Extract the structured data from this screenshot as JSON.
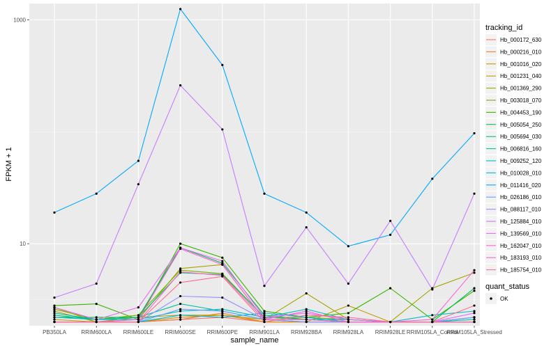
{
  "chart_data": {
    "type": "line",
    "xlabel": "sample_name",
    "ylabel": "FPKM + 1",
    "y_scale": "log10",
    "ylim": [
      1.85,
      1400
    ],
    "y_ticks": [
      10,
      1000
    ],
    "y_tick_labels": [
      "10",
      "1000"
    ],
    "grid": true,
    "legend_position": "right",
    "categories": [
      "PB350LA",
      "RRIM600LA",
      "RRIM600LE",
      "RRIM600SE",
      "RRIM600PE",
      "RRIM901LA",
      "RRIM928BA",
      "RRIM928LA",
      "RRIM928LE",
      "RRIM105LA_Control",
      "RRIM105LA_Stressed"
    ],
    "color_legend_title": "tracking_id",
    "shape_legend_title": "quant_status",
    "shape_legend_entries": [
      "OK"
    ],
    "series": [
      {
        "name": "Hb_000172_630",
        "color": "#F8766D",
        "values": [
          2,
          2,
          2,
          2.1,
          2.2,
          2,
          2,
          2,
          2,
          2,
          2
        ]
      },
      {
        "name": "Hb_000216_010",
        "color": "#EE7F3C",
        "values": [
          2,
          2,
          2,
          2.1,
          2.4,
          2,
          2,
          2,
          2,
          2,
          2
        ]
      },
      {
        "name": "Hb_001016_020",
        "color": "#D89000",
        "values": [
          2.1,
          2,
          2,
          2.2,
          2.3,
          2,
          2,
          2,
          2,
          2,
          2
        ]
      },
      {
        "name": "Hb_001231_040",
        "color": "#C09A00",
        "values": [
          2.5,
          2,
          2.2,
          2.3,
          2.3,
          2.1,
          2,
          2.8,
          2,
          2,
          2
        ]
      },
      {
        "name": "Hb_001369_290",
        "color": "#A3A500",
        "values": [
          2.7,
          2,
          2.1,
          6,
          6.5,
          2.1,
          3.6,
          2.1,
          2,
          4,
          5.5
        ]
      },
      {
        "name": "Hb_003018_070",
        "color": "#7CAE00",
        "values": [
          2.6,
          2.1,
          2.3,
          5.8,
          5.4,
          2.2,
          2.2,
          2.1,
          2,
          2,
          2
        ]
      },
      {
        "name": "Hb_004453_190",
        "color": "#39B600",
        "values": [
          2.8,
          2.9,
          2.1,
          10,
          7.5,
          2.5,
          2.2,
          2.4,
          4,
          2.1,
          3.8
        ]
      },
      {
        "name": "Hb_005054_250",
        "color": "#00BB4E",
        "values": [
          2.2,
          2.2,
          2.2,
          9.2,
          6.7,
          2.3,
          2.1,
          2.1,
          2,
          2,
          4
        ]
      },
      {
        "name": "Hb_005694_030",
        "color": "#00BF7D",
        "values": [
          2.3,
          2.1,
          2.2,
          5.5,
          5.3,
          2.2,
          2.1,
          2,
          2,
          2,
          2.2
        ]
      },
      {
        "name": "Hb_006816_160",
        "color": "#00C1A3",
        "values": [
          2.4,
          2.1,
          2.2,
          2.9,
          2.5,
          2.1,
          2.1,
          2.1,
          2,
          2,
          2.1
        ]
      },
      {
        "name": "Hb_009252_120",
        "color": "#00BFC4",
        "values": [
          2.2,
          2.1,
          2.1,
          2.5,
          2.6,
          2.2,
          2.6,
          2.1,
          2,
          2.3,
          2.5
        ]
      },
      {
        "name": "Hb_010028_010",
        "color": "#00B8E7",
        "values": [
          2,
          2,
          2,
          2.3,
          2.2,
          2.4,
          2.2,
          2,
          2,
          2,
          2.2
        ]
      },
      {
        "name": "Hb_011416_020",
        "color": "#00A9FF",
        "values": [
          19,
          28,
          55,
          1250,
          395,
          28,
          19,
          9.5,
          12,
          38,
          97
        ]
      },
      {
        "name": "Hb_026186_010",
        "color": "#619CFF",
        "values": [
          2,
          2,
          2,
          2.6,
          2.5,
          2.1,
          2,
          2,
          2,
          2,
          2
        ]
      },
      {
        "name": "Hb_088117_010",
        "color": "#8F91FF",
        "values": [
          2,
          2,
          2,
          3.4,
          3.3,
          2.1,
          2,
          2,
          2,
          2,
          2.2
        ]
      },
      {
        "name": "Hb_125884_010",
        "color": "#C77CFF",
        "values": [
          3.3,
          4.4,
          34,
          260,
          105,
          4.2,
          14,
          4.4,
          16,
          3.9,
          28
        ]
      },
      {
        "name": "Hb_139569_010",
        "color": "#E76BF3",
        "values": [
          2.7,
          2.1,
          2.7,
          9.2,
          7,
          2.2,
          2.4,
          2.1,
          2,
          2,
          2.4
        ]
      },
      {
        "name": "Hb_162047_010",
        "color": "#FA62DB",
        "values": [
          2,
          2,
          2.1,
          9,
          6.5,
          2.1,
          2.5,
          2,
          2,
          2.1,
          5.8
        ]
      },
      {
        "name": "Hb_183193_010",
        "color": "#FF62BC",
        "values": [
          2,
          2,
          2,
          5.6,
          5.2,
          2.1,
          2.1,
          2,
          2,
          2,
          2
        ]
      },
      {
        "name": "Hb_185754_010",
        "color": "#FF6C91",
        "values": [
          2,
          2,
          2,
          4.5,
          5.1,
          2,
          2.3,
          2.2,
          2,
          2,
          2.8
        ]
      }
    ]
  }
}
